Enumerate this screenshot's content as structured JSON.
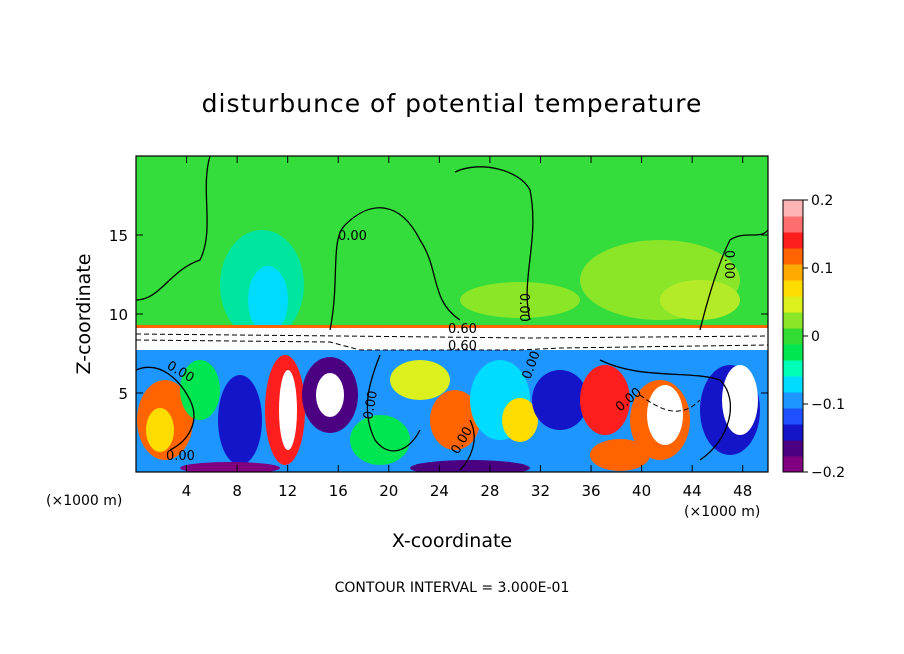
{
  "chart_data": {
    "type": "heatmap",
    "title": "disturbunce of potential temperature",
    "xlabel": "X-coordinate",
    "ylabel": "Z-coordinate",
    "x_unit": "(×1000 m)",
    "y_unit": "(×1000 m)",
    "xlim": [
      0,
      50
    ],
    "ylim": [
      0,
      20
    ],
    "x_ticks": [
      4,
      8,
      12,
      16,
      20,
      24,
      28,
      32,
      36,
      40,
      44,
      48
    ],
    "y_ticks": [
      5,
      10,
      15
    ],
    "colorbar": {
      "min": -0.2,
      "max": 0.2,
      "ticks": [
        0.2,
        0.1,
        0,
        -0.1,
        -0.2
      ],
      "tick_labels": [
        "0.2",
        "0.1",
        "0",
        "−0.1",
        "−0.2"
      ],
      "colors": [
        "#800080",
        "#4b0082",
        "#1414c8",
        "#1e50ff",
        "#1e96ff",
        "#00dcff",
        "#00ffb4",
        "#00e650",
        "#32dc32",
        "#8ce628",
        "#dcf01e",
        "#ffdc00",
        "#ffaa00",
        "#ff6400",
        "#ff1e1e",
        "#ff6e6e",
        "#ffb4b4"
      ]
    },
    "contour_labels": [
      "0.00",
      "0.00",
      "0.00",
      "0.00",
      "0.60",
      "0.60",
      "0.00",
      "0.00",
      "0.00",
      "0.00",
      "0.00"
    ],
    "contour_interval_text": "CONTOUR INTERVAL = 3.000E-01"
  }
}
